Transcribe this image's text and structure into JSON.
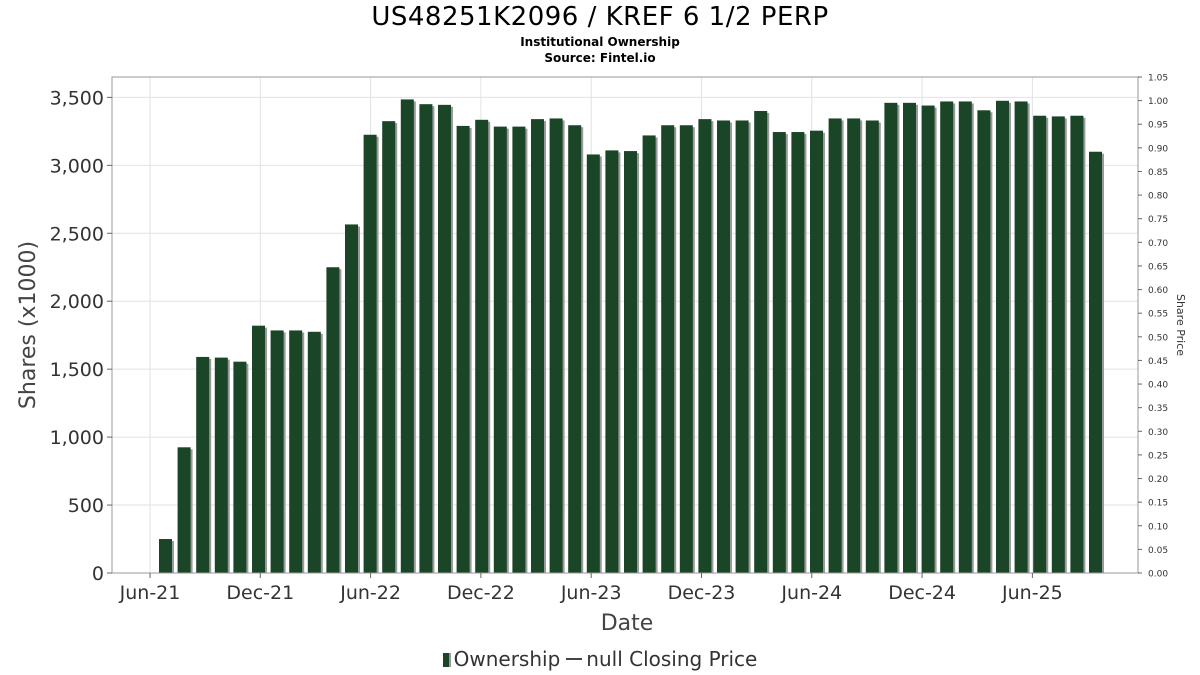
{
  "title": "US48251K2096 / KREF 6 1/2 PERP",
  "subtitle": "Institutional Ownership",
  "source": "Source: Fintel.io",
  "legend": {
    "ownership": "Ownership",
    "price": "null Closing Price"
  },
  "colors": {
    "bar": "#1b4527",
    "bar_shadow": "#9a9a9a",
    "grid": "#e2e2e2"
  },
  "chart_data": {
    "type": "bar",
    "xlabel": "Date",
    "ylabel": "Shares (x1000)",
    "y2label": "Share Price",
    "ylim": [
      0,
      3650
    ],
    "y2lim": [
      0,
      1.05
    ],
    "yticks": [
      0,
      500,
      1000,
      1500,
      2000,
      2500,
      3000,
      3500
    ],
    "ytick_labels": [
      "0",
      "500",
      "1,000",
      "1,500",
      "2,000",
      "2,500",
      "3,000",
      "3,500"
    ],
    "y2ticks": [
      "0.00",
      "0.05",
      "0.10",
      "0.15",
      "0.20",
      "0.25",
      "0.30",
      "0.35",
      "0.40",
      "0.45",
      "0.50",
      "0.55",
      "0.60",
      "0.65",
      "0.70",
      "0.75",
      "0.80",
      "0.85",
      "0.90",
      "0.95",
      "1.00",
      "1.05"
    ],
    "xticks": [
      "Jun-21",
      "Dec-21",
      "Jun-22",
      "Dec-22",
      "Jun-23",
      "Dec-23",
      "Jun-24",
      "Dec-24",
      "Jun-25"
    ],
    "grid": true,
    "legend_position": "bottom",
    "series": [
      {
        "name": "Ownership",
        "values": [
          250,
          925,
          1590,
          1585,
          1555,
          1820,
          1785,
          1785,
          1775,
          2250,
          2565,
          3225,
          3325,
          3485,
          3450,
          3445,
          3290,
          3335,
          3285,
          3285,
          3340,
          3345,
          3295,
          3080,
          3110,
          3105,
          3220,
          3295,
          3295,
          3340,
          3330,
          3330,
          3400,
          3245,
          3245,
          3255,
          3345,
          3345,
          3330,
          3460,
          3460,
          3440,
          3470,
          3470,
          3405,
          3475,
          3470,
          3365,
          3360,
          3365,
          3100
        ]
      }
    ]
  }
}
